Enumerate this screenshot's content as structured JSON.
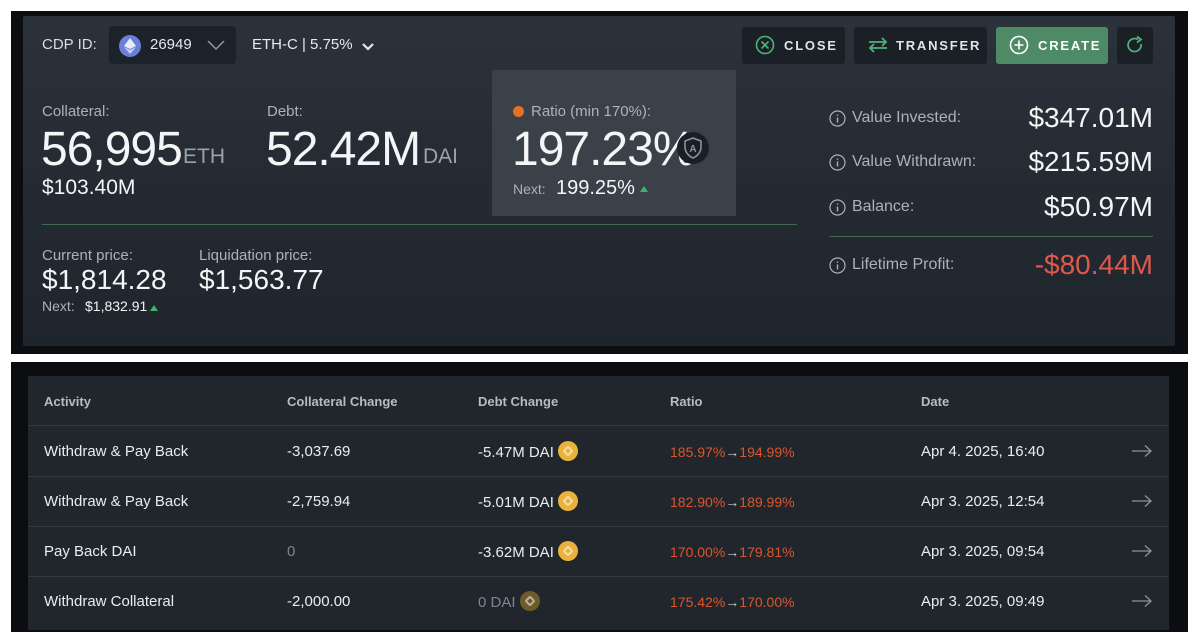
{
  "header": {
    "cdp_label": "CDP ID:",
    "cdp_id": "26949",
    "ilk": "ETH-C | 5.75%",
    "buttons": {
      "close": "CLOSE",
      "transfer": "TRANSFER",
      "create": "CREATE"
    }
  },
  "collateral": {
    "label": "Collateral:",
    "amount": "56,995",
    "unit": "ETH",
    "usd": "$103.40M"
  },
  "debt": {
    "label": "Debt:",
    "amount": "52.42M",
    "unit": "DAI"
  },
  "ratio": {
    "label": "Ratio (min 170%):",
    "value": "197.23%",
    "next_label": "Next:",
    "next_value": "199.25%",
    "badge": "A"
  },
  "current_price": {
    "label": "Current price:",
    "value": "$1,814.28",
    "next_label": "Next:",
    "next_value": "$1,832.91"
  },
  "liquidation_price": {
    "label": "Liquidation price:",
    "value": "$1,563.77"
  },
  "summary": {
    "value_invested": {
      "label": "Value Invested:",
      "value": "$347.01M"
    },
    "value_withdrawn": {
      "label": "Value Withdrawn:",
      "value": "$215.59M"
    },
    "balance": {
      "label": "Balance:",
      "value": "$50.97M"
    },
    "lifetime_profit": {
      "label": "Lifetime Profit:",
      "value": "-$80.44M"
    }
  },
  "table": {
    "headers": [
      "Activity",
      "Collateral Change",
      "Debt Change",
      "Ratio",
      "Date"
    ],
    "rows": [
      {
        "activity": "Withdraw & Pay Back",
        "collateral": "-3,037.69",
        "debt": "-5.47M DAI",
        "ratio_from": "185.97%",
        "ratio_arrow": "→",
        "ratio_to": "194.99%",
        "date": "Apr 4. 2025, 16:40"
      },
      {
        "activity": "Withdraw & Pay Back",
        "collateral": "-2,759.94",
        "debt": "-5.01M DAI",
        "ratio_from": "182.90%",
        "ratio_arrow": "→",
        "ratio_to": "189.99%",
        "date": "Apr 3. 2025, 12:54"
      },
      {
        "activity": "Pay Back DAI",
        "collateral": "0",
        "debt": "-3.62M DAI",
        "ratio_from": "170.00%",
        "ratio_arrow": "→",
        "ratio_to": "179.81%",
        "date": "Apr 3. 2025, 09:54"
      },
      {
        "activity": "Withdraw Collateral",
        "collateral": "-2,000.00",
        "debt": "0 DAI",
        "ratio_from": "175.42%",
        "ratio_arrow": "→",
        "ratio_to": "170.00%",
        "date": "Apr 3. 2025, 09:49"
      }
    ]
  },
  "colors": {
    "accent_green": "#4f8a67",
    "negative_red": "#e0584c",
    "ratio_orange": "#d9572d",
    "dai_gold": "#e8b23b"
  },
  "icons": [
    "eth-icon",
    "chevron-down-icon",
    "close-circle-icon",
    "transfer-arrows-icon",
    "plus-circle-icon",
    "refresh-icon",
    "shield-icon",
    "info-icon",
    "dai-coin-icon",
    "arrow-right-icon"
  ]
}
